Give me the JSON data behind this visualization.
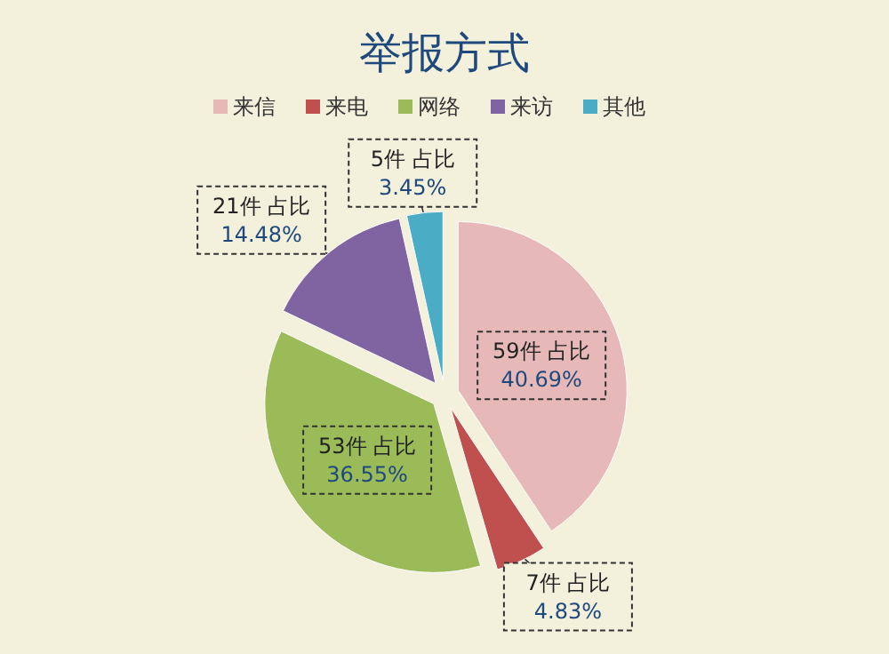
{
  "chart_data": {
    "type": "pie",
    "title": "举报方式",
    "categories": [
      "来信",
      "来电",
      "网络",
      "来访",
      "其他"
    ],
    "values": [
      59,
      7,
      53,
      21,
      5
    ],
    "colors": [
      "#e6b9b8",
      "#c0504d",
      "#9bbb59",
      "#8064a2",
      "#4bacc6"
    ],
    "value_labels": [
      "59件 占比\n40.69%",
      "7件 占比\n4.83%",
      "53件 占比\n36.55%",
      "21件 占比\n14.48%",
      "5件 占比\n3.45%"
    ],
    "legend": "top"
  }
}
